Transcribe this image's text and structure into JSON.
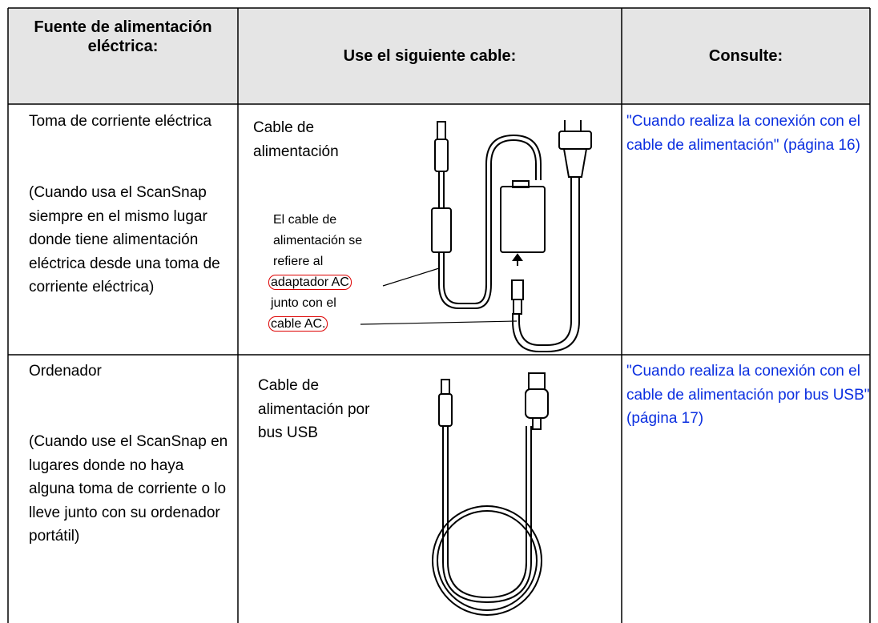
{
  "table": {
    "header": [
      "Fuente de alimentación eléctrica:",
      "Use el siguiente cable:",
      "Consulte:"
    ],
    "rows": [
      {
        "source": "Toma de corriente eléctrica",
        "source_note": "(Cuando usa el ScanSnap siempre en el mismo lugar donde tiene alimentación eléctrica desde una toma de corriente eléctrica)",
        "cable": "Cable de alimentación",
        "link": "\"Cuando realiza la conexión con el cable de alimentación\" (página 16)",
        "annotation": {
          "intro": "El cable de alimentación se refiere al",
          "adapter": "adaptador AC",
          "middle": "junto con el",
          "ac_cable": "cable AC."
        }
      },
      {
        "source": "Ordenador",
        "source_note": "(Cuando use el ScanSnap en lugares donde no haya alguna toma de corriente o lo lleve junto con su ordenador portátil)",
        "cable": "Cable de alimentación por bus USB",
        "link": "\"Cuando realiza la conexión con el cable de alimentación por bus USB\" (página 17)"
      }
    ]
  }
}
